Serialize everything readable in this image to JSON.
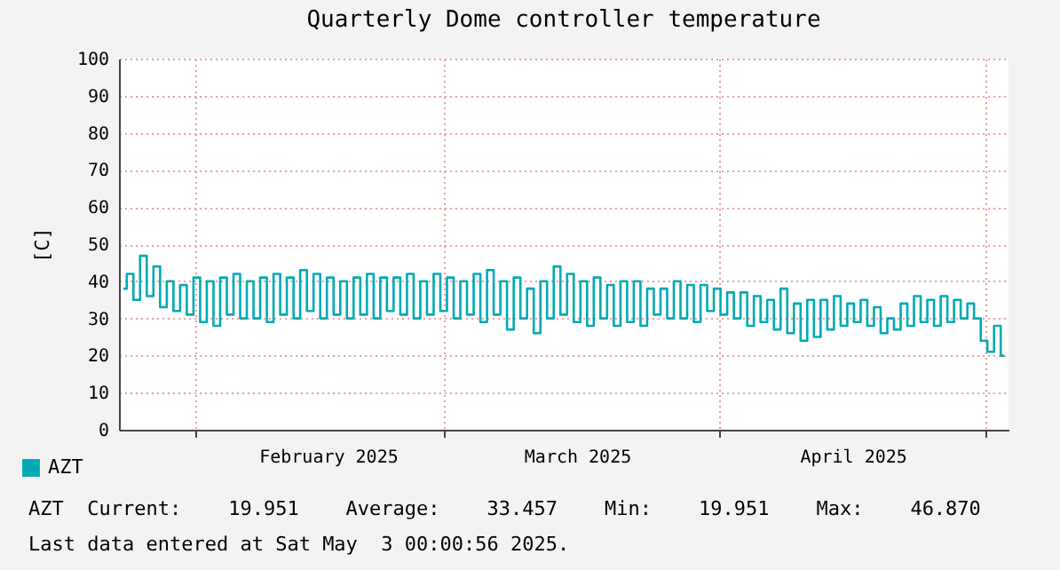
{
  "chart_data": {
    "type": "step",
    "title": "Quarterly Dome controller temperature",
    "ylabel": "[C]",
    "x": [
      "2025-01-24T00:00",
      "2025-01-24T18:00",
      "2025-01-25T12:00",
      "2025-01-26T06:00",
      "2025-01-27T00:00",
      "2025-01-27T18:00",
      "2025-01-28T12:00",
      "2025-01-29T06:00",
      "2025-01-30T00:00",
      "2025-01-30T18:00",
      "2025-01-31T12:00",
      "2025-02-01T06:00",
      "2025-02-02T00:00",
      "2025-02-02T18:00",
      "2025-02-03T12:00",
      "2025-02-04T06:00",
      "2025-02-05T00:00",
      "2025-02-05T18:00",
      "2025-02-06T12:00",
      "2025-02-07T06:00",
      "2025-02-08T00:00",
      "2025-02-08T18:00",
      "2025-02-09T12:00",
      "2025-02-10T06:00",
      "2025-02-11T00:00",
      "2025-02-11T18:00",
      "2025-02-12T12:00",
      "2025-02-13T06:00",
      "2025-02-14T00:00",
      "2025-02-14T18:00",
      "2025-02-15T12:00",
      "2025-02-16T06:00",
      "2025-02-17T00:00",
      "2025-02-17T18:00",
      "2025-02-18T12:00",
      "2025-02-19T06:00",
      "2025-02-20T00:00",
      "2025-02-20T18:00",
      "2025-02-21T12:00",
      "2025-02-22T06:00",
      "2025-02-23T00:00",
      "2025-02-23T18:00",
      "2025-02-24T12:00",
      "2025-02-25T06:00",
      "2025-02-26T00:00",
      "2025-02-26T18:00",
      "2025-02-27T12:00",
      "2025-02-28T06:00",
      "2025-03-01T00:00",
      "2025-03-01T18:00",
      "2025-03-02T12:00",
      "2025-03-03T06:00",
      "2025-03-04T00:00",
      "2025-03-04T18:00",
      "2025-03-05T12:00",
      "2025-03-06T06:00",
      "2025-03-07T00:00",
      "2025-03-07T18:00",
      "2025-03-08T12:00",
      "2025-03-09T06:00",
      "2025-03-10T00:00",
      "2025-03-10T18:00",
      "2025-03-11T12:00",
      "2025-03-12T06:00",
      "2025-03-13T00:00",
      "2025-03-13T18:00",
      "2025-03-14T12:00",
      "2025-03-15T06:00",
      "2025-03-16T00:00",
      "2025-03-16T18:00",
      "2025-03-17T12:00",
      "2025-03-18T06:00",
      "2025-03-19T00:00",
      "2025-03-19T18:00",
      "2025-03-20T12:00",
      "2025-03-21T06:00",
      "2025-03-22T00:00",
      "2025-03-22T18:00",
      "2025-03-23T12:00",
      "2025-03-24T06:00",
      "2025-03-25T00:00",
      "2025-03-25T18:00",
      "2025-03-26T12:00",
      "2025-03-27T06:00",
      "2025-03-28T00:00",
      "2025-03-28T18:00",
      "2025-03-29T12:00",
      "2025-03-30T06:00",
      "2025-03-31T00:00",
      "2025-03-31T18:00",
      "2025-04-01T12:00",
      "2025-04-02T06:00",
      "2025-04-03T00:00",
      "2025-04-03T18:00",
      "2025-04-04T12:00",
      "2025-04-05T06:00",
      "2025-04-06T00:00",
      "2025-04-06T18:00",
      "2025-04-07T12:00",
      "2025-04-08T06:00",
      "2025-04-09T00:00",
      "2025-04-09T18:00",
      "2025-04-10T12:00",
      "2025-04-11T06:00",
      "2025-04-12T00:00",
      "2025-04-12T18:00",
      "2025-04-13T12:00",
      "2025-04-14T06:00",
      "2025-04-15T00:00",
      "2025-04-15T18:00",
      "2025-04-16T12:00",
      "2025-04-17T06:00",
      "2025-04-18T00:00",
      "2025-04-18T18:00",
      "2025-04-19T12:00",
      "2025-04-20T06:00",
      "2025-04-21T00:00",
      "2025-04-21T18:00",
      "2025-04-22T12:00",
      "2025-04-23T06:00",
      "2025-04-24T00:00",
      "2025-04-24T18:00",
      "2025-04-25T12:00",
      "2025-04-26T06:00",
      "2025-04-27T00:00",
      "2025-04-27T18:00",
      "2025-04-28T12:00",
      "2025-04-29T06:00",
      "2025-04-30T00:00",
      "2025-04-30T18:00",
      "2025-05-01T12:00",
      "2025-05-02T06:00",
      "2025-05-03T00:00"
    ],
    "series": [
      {
        "name": "AZT",
        "color": "#00aab4",
        "values": [
          38,
          42,
          35,
          46.87,
          36,
          44,
          33,
          40,
          32,
          39,
          31,
          41,
          29,
          40,
          28,
          41,
          31,
          42,
          30,
          40,
          30,
          41,
          29,
          42,
          31,
          41,
          30,
          43,
          32,
          42,
          30,
          41,
          31,
          40,
          30,
          41,
          31,
          42,
          30,
          41,
          32,
          41,
          31,
          42,
          30,
          40,
          31,
          42,
          32,
          41,
          30,
          40,
          31,
          42,
          29,
          43,
          31,
          40,
          27,
          41,
          30,
          38,
          26,
          40,
          30,
          44,
          31,
          42,
          29,
          40,
          28,
          41,
          30,
          39,
          28,
          40,
          29,
          40,
          28,
          38,
          31,
          38,
          30,
          40,
          30,
          39,
          29,
          39,
          32,
          38,
          31,
          37,
          30,
          37,
          28,
          36,
          29,
          35,
          27,
          38,
          26,
          34,
          24,
          35,
          25,
          35,
          27,
          36,
          28,
          34,
          29,
          35,
          28,
          33,
          26,
          30,
          27,
          34,
          28,
          36,
          29,
          35,
          28,
          36,
          29,
          35,
          30,
          34,
          30,
          24,
          21,
          28,
          19.951
        ]
      }
    ],
    "xlim": [
      "2025-01-23T12:00",
      "2025-05-03T12:00"
    ],
    "xticks": [
      {
        "value": "2025-02-01T00:00",
        "label": null
      },
      {
        "value": "2025-02-16T00:00",
        "label": "February 2025"
      },
      {
        "value": "2025-03-01T00:00",
        "label": null
      },
      {
        "value": "2025-03-16T00:00",
        "label": "March 2025"
      },
      {
        "value": "2025-04-01T00:00",
        "label": null
      },
      {
        "value": "2025-04-16T00:00",
        "label": "April 2025"
      },
      {
        "value": "2025-05-01T00:00",
        "label": null
      }
    ],
    "ylim": [
      0,
      100
    ],
    "yticks": [
      0,
      10,
      20,
      30,
      40,
      50,
      60,
      70,
      80,
      90,
      100
    ],
    "grid": true,
    "legend": "bottom left",
    "annotations": [
      "AZT  Current:    19.951    Average:    33.457    Min:    19.951    Max:    46.870",
      "Last data entered at Sat May  3 00:00:56 2025."
    ]
  }
}
